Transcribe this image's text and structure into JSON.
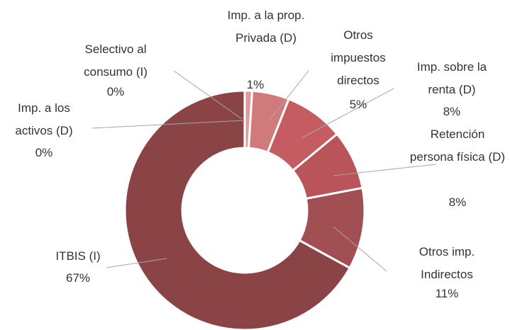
{
  "chart_data": {
    "type": "donut",
    "categories": [
      "Imp. a los activos (D)",
      "Selectivo al consumo (I)",
      "Imp. a la prop. Privada (D)",
      "Otros impuestos directos",
      "Imp. sobre la renta (D)",
      "Retención persona física (D)",
      "Otros imp. Indirectos",
      "ITBIS (I)"
    ],
    "values": [
      0,
      0,
      1,
      5,
      8,
      8,
      11,
      67
    ],
    "value_labels": [
      "0%",
      "0%",
      "1%",
      "5%",
      "8%",
      "8%",
      "11%",
      "67%"
    ],
    "colors": [
      "#c9a0a2",
      "#e0b4b5",
      "#dc9c9e",
      "#d07a7c",
      "#c45c61",
      "#b8545a",
      "#a14f53",
      "#8b4446"
    ]
  }
}
